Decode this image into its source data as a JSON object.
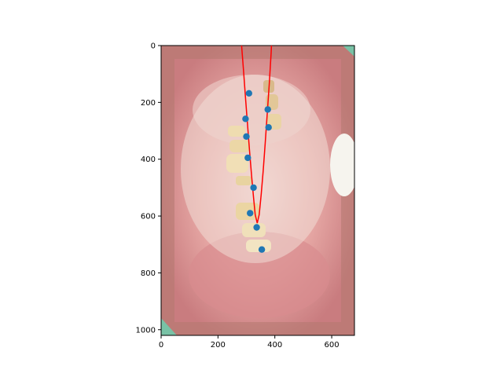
{
  "chart_data": {
    "type": "scatter",
    "title": "",
    "xlabel": "",
    "ylabel": "",
    "xlim": [
      0,
      680
    ],
    "ylim": [
      1020,
      0
    ],
    "y_inverted": true,
    "grid": false,
    "background": "intraoral dental photograph (upper and lower dental arch, mouth open)",
    "xticks": [
      0,
      200,
      400,
      600
    ],
    "yticks": [
      0,
      200,
      400,
      600,
      800,
      1000
    ],
    "series": [
      {
        "kind": "scatter",
        "color": "#1f77b4",
        "points": [
          {
            "x": 309,
            "y": 168
          },
          {
            "x": 375,
            "y": 225
          },
          {
            "x": 297,
            "y": 258
          },
          {
            "x": 378,
            "y": 288
          },
          {
            "x": 300,
            "y": 320
          },
          {
            "x": 305,
            "y": 395
          },
          {
            "x": 325,
            "y": 500
          },
          {
            "x": 313,
            "y": 590
          },
          {
            "x": 336,
            "y": 640
          },
          {
            "x": 354,
            "y": 718
          }
        ]
      },
      {
        "kind": "line",
        "color": "#ff0000",
        "description": "fitted parabola through arch points",
        "x": [
          283,
          290,
          297,
          304,
          311,
          318,
          325,
          331,
          338,
          345,
          352,
          359,
          366,
          373,
          380,
          387,
          388
        ],
        "y": [
          0,
          90,
          185,
          280,
          370,
          455,
          535,
          595,
          625,
          595,
          525,
          440,
          345,
          245,
          140,
          25,
          0
        ]
      }
    ]
  }
}
